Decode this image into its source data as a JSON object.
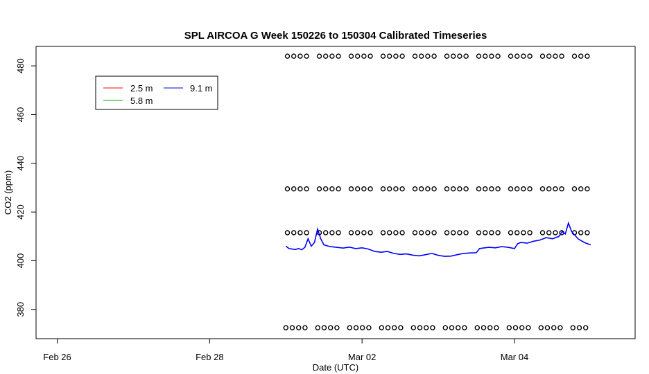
{
  "chart_data": {
    "type": "line",
    "title": "SPL AIRCOA G  Week 150226 to 150304  Calibrated Timeseries",
    "xlabel": "Date (UTC)",
    "ylabel": "CO2 (ppm)",
    "xlim": [
      "2015-02-25T17:20",
      "2015-03-05T14:00"
    ],
    "ylim": [
      368,
      488
    ],
    "x_ticks": [
      {
        "label": "Feb 26",
        "value": "2015-02-26T00:00"
      },
      {
        "label": "Feb 28",
        "value": "2015-02-28T00:00"
      },
      {
        "label": "Mar 02",
        "value": "2015-03-02T00:00"
      },
      {
        "label": "Mar 04",
        "value": "2015-03-04T00:00"
      }
    ],
    "y_ticks": [
      380,
      400,
      420,
      440,
      460,
      480
    ],
    "legend": {
      "position": "top-left",
      "entries": [
        {
          "name": "2.5 m",
          "color": "#ff0000"
        },
        {
          "name": "5.8 m",
          "color": "#00aa00"
        },
        {
          "name": "9.1 m",
          "color": "#0000cc"
        }
      ]
    },
    "series": [
      {
        "name": "9.1 m",
        "color": "#0000ff",
        "points": [
          [
            "2015-03-01T00:00",
            406
          ],
          [
            "2015-03-01T01:00",
            405
          ],
          [
            "2015-03-01T02:00",
            404.8
          ],
          [
            "2015-03-01T03:00",
            404.6
          ],
          [
            "2015-03-01T04:00",
            405
          ],
          [
            "2015-03-01T05:00",
            404.5
          ],
          [
            "2015-03-01T06:00",
            405.5
          ],
          [
            "2015-03-01T07:00",
            409
          ],
          [
            "2015-03-01T08:00",
            406
          ],
          [
            "2015-03-01T09:00",
            407.5
          ],
          [
            "2015-03-01T10:00",
            413
          ],
          [
            "2015-03-01T11:00",
            409
          ],
          [
            "2015-03-01T12:00",
            406.5
          ],
          [
            "2015-03-01T14:00",
            405.8
          ],
          [
            "2015-03-01T16:00",
            405.5
          ],
          [
            "2015-03-01T18:00",
            405.2
          ],
          [
            "2015-03-01T20:00",
            405.6
          ],
          [
            "2015-03-01T22:00",
            405
          ],
          [
            "2015-03-02T00:00",
            405.3
          ],
          [
            "2015-03-02T02:00",
            404.8
          ],
          [
            "2015-03-02T04:00",
            403.8
          ],
          [
            "2015-03-02T06:00",
            403.5
          ],
          [
            "2015-03-02T08:00",
            403.8
          ],
          [
            "2015-03-02T10:00",
            403
          ],
          [
            "2015-03-02T12:00",
            402.6
          ],
          [
            "2015-03-02T14:00",
            402.8
          ],
          [
            "2015-03-02T16:00",
            402.3
          ],
          [
            "2015-03-02T18:00",
            402
          ],
          [
            "2015-03-02T20:00",
            402.5
          ],
          [
            "2015-03-02T22:00",
            403
          ],
          [
            "2015-03-03T00:00",
            402.2
          ],
          [
            "2015-03-03T02:00",
            401.8
          ],
          [
            "2015-03-03T04:00",
            401.9
          ],
          [
            "2015-03-03T06:00",
            402.5
          ],
          [
            "2015-03-03T08:00",
            403
          ],
          [
            "2015-03-03T10:00",
            403.2
          ],
          [
            "2015-03-03T12:00",
            403.3
          ],
          [
            "2015-03-03T13:00",
            405
          ],
          [
            "2015-03-03T14:00",
            405.2
          ],
          [
            "2015-03-03T16:00",
            405.5
          ],
          [
            "2015-03-03T18:00",
            405.3
          ],
          [
            "2015-03-03T20:00",
            405.8
          ],
          [
            "2015-03-03T22:00",
            405.5
          ],
          [
            "2015-03-04T00:00",
            405
          ],
          [
            "2015-03-04T01:00",
            407
          ],
          [
            "2015-03-04T02:00",
            407.5
          ],
          [
            "2015-03-04T04:00",
            407.2
          ],
          [
            "2015-03-04T06:00",
            408
          ],
          [
            "2015-03-04T08:00",
            408.5
          ],
          [
            "2015-03-04T10:00",
            409.5
          ],
          [
            "2015-03-04T12:00",
            409
          ],
          [
            "2015-03-04T14:00",
            410
          ],
          [
            "2015-03-04T15:00",
            412
          ],
          [
            "2015-03-04T16:00",
            411
          ],
          [
            "2015-03-04T17:00",
            415.5
          ],
          [
            "2015-03-04T18:00",
            412
          ],
          [
            "2015-03-04T19:00",
            410.5
          ],
          [
            "2015-03-04T20:00",
            409
          ],
          [
            "2015-03-04T22:00",
            407.5
          ],
          [
            "2015-03-05T00:00",
            406.5
          ]
        ]
      }
    ],
    "marker_rows": [
      {
        "y": 484,
        "x_start": "2015-03-01T00:30",
        "x_end": "2015-03-05T00:00"
      },
      {
        "y": 429.5,
        "x_start": "2015-03-01T00:30",
        "x_end": "2015-03-05T00:00"
      },
      {
        "y": 411.5,
        "x_start": "2015-03-01T00:30",
        "x_end": "2015-03-05T00:00"
      },
      {
        "y": 372.5,
        "x_start": "2015-03-01T00:00",
        "x_end": "2015-03-05T00:00"
      }
    ]
  }
}
